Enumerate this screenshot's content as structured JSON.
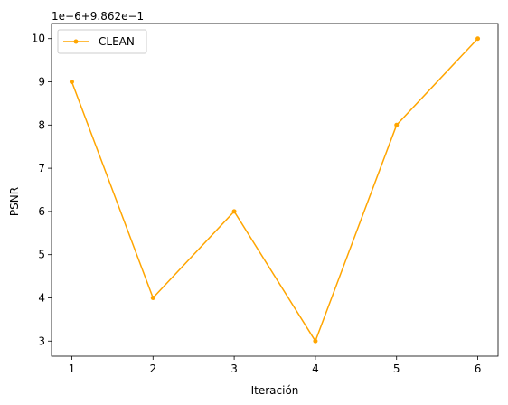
{
  "chart_data": {
    "type": "line",
    "xlabel": "Iteración",
    "ylabel": "PSNR",
    "offset_text": "1e−6+9.862e−1",
    "x": [
      1,
      2,
      3,
      4,
      5,
      6
    ],
    "x_ticks": [
      "1",
      "2",
      "3",
      "4",
      "5",
      "6"
    ],
    "xlim": [
      0.75,
      6.25
    ],
    "y_ticks": [
      "3",
      "4",
      "5",
      "6",
      "7",
      "8",
      "9",
      "10"
    ],
    "ylim": [
      2.65,
      10.35
    ],
    "y_tick_values": [
      3,
      4,
      5,
      6,
      7,
      8,
      9,
      10
    ],
    "grid": false,
    "legend_position": "upper-left",
    "series": [
      {
        "name": "CLEAN",
        "color": "#ffa500",
        "marker": "dot",
        "values": [
          9,
          4,
          6,
          3,
          8,
          10
        ]
      }
    ]
  }
}
